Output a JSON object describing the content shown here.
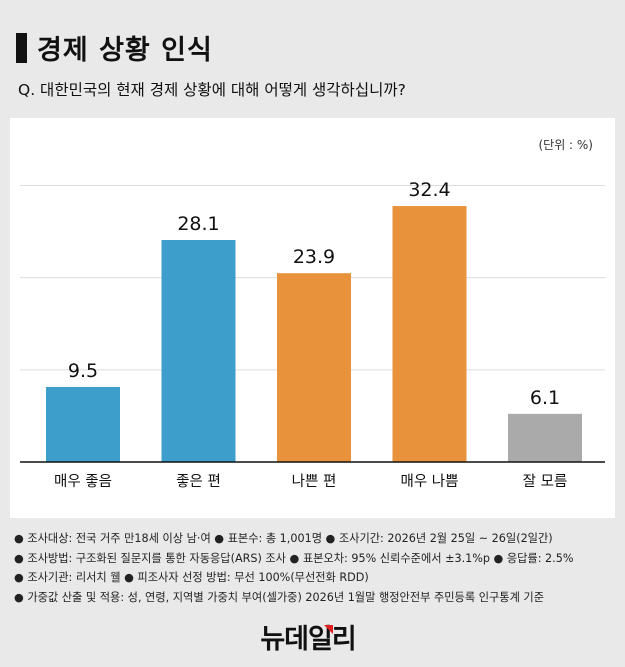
{
  "header": {
    "title": "경제 상황 인식",
    "question": "Q. 대한민국의 현재 경제 상황에 대해 어떻게 생각하십니까?"
  },
  "chart_data": {
    "type": "bar",
    "unit_label": "(단위 : %)",
    "categories": [
      "매우 좋음",
      "좋은 편",
      "나쁜 편",
      "매우 나쁨",
      "잘 모름"
    ],
    "values": [
      9.5,
      28.1,
      23.9,
      32.4,
      6.1
    ],
    "data_labels": [
      "9.5",
      "28.1",
      "23.9",
      "32.4",
      "6.1"
    ],
    "colors": [
      "#3d9ecc",
      "#3d9ecc",
      "#e8923c",
      "#e8923c",
      "#aaaaaa"
    ],
    "ylim": [
      0,
      35
    ],
    "grid": true,
    "title": "",
    "xlabel": "",
    "ylabel": ""
  },
  "notes": [
    "● 조사대상: 전국 거주 만18세 이상 남·여 ● 표본수: 총 1,001명 ● 조사기간: 2026년 2월 25일 ~ 26일(2일간)",
    "● 조사방법: 구조화된 질문지를 통한 자동응답(ARS) 조사 ● 표본오차: 95% 신뢰수준에서 ±3.1%p ● 응답률: 2.5%",
    "● 조사기관: 리서치 웰 ● 피조사자 선정 방법: 무선 100%(무선전화 RDD)",
    "● 가중값 산출 및 적용: 성, 연령, 지역별 가중치 부여(셀가중) 2026년 1월말 행정안전부 주민등록 인구통계 기준"
  ],
  "logo": "뉴데일리"
}
